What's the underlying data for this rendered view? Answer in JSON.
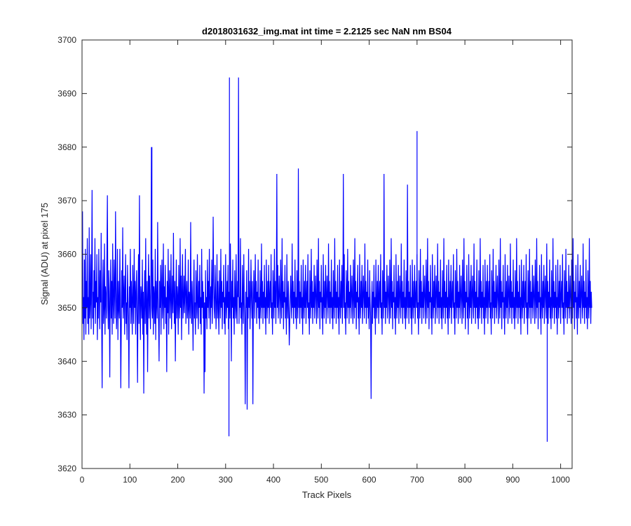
{
  "chart_data": {
    "type": "line",
    "title": "d2018031632_img.mat int time = 2.2125 sec  NaN nm BS04",
    "xlabel": "Track Pixels",
    "ylabel": "Signal (ADU) at pixel 175",
    "xlim": [
      0,
      1024
    ],
    "ylim": [
      3620,
      3700
    ],
    "xticks": [
      0,
      100,
      200,
      300,
      400,
      500,
      600,
      700,
      800,
      900,
      1000
    ],
    "yticks": [
      3620,
      3630,
      3640,
      3650,
      3660,
      3670,
      3680,
      3690,
      3700
    ],
    "xtick_labels": [
      "0",
      "100",
      "200",
      "300",
      "400",
      "500",
      "600",
      "700",
      "800",
      "900",
      "1000"
    ],
    "ytick_labels": [
      "3620",
      "3630",
      "3640",
      "3650",
      "3660",
      "3670",
      "3680",
      "3690",
      "3700"
    ],
    "grid": false,
    "series": [
      {
        "color": "#0000ff",
        "x_start": 1,
        "x_step": 1,
        "values": [
          3668,
          3647,
          3652,
          3644,
          3659,
          3648,
          3661,
          3645,
          3655,
          3650,
          3663,
          3647,
          3652,
          3645,
          3665,
          3648,
          3651,
          3660,
          3646,
          3655,
          3672,
          3648,
          3653,
          3645,
          3657,
          3650,
          3663,
          3647,
          3655,
          3651,
          3660,
          3644,
          3652,
          3648,
          3661,
          3653,
          3646,
          3657,
          3651,
          3664,
          3648,
          3635,
          3653,
          3659,
          3647,
          3650,
          3662,
          3645,
          3654,
          3652,
          3648,
          3660,
          3671,
          3650,
          3646,
          3657,
          3651,
          3637,
          3653,
          3659,
          3648,
          3655,
          3645,
          3662,
          3651,
          3647,
          3659,
          3653,
          3648,
          3668,
          3654,
          3646,
          3650,
          3661,
          3644,
          3655,
          3650,
          3648,
          3661,
          3652,
          3635,
          3646,
          3657,
          3650,
          3665,
          3648,
          3652,
          3656,
          3645,
          3653,
          3660,
          3647,
          3651,
          3644,
          3658,
          3652,
          3648,
          3635,
          3654,
          3650,
          3661,
          3647,
          3655,
          3651,
          3645,
          3658,
          3652,
          3647,
          3661,
          3650,
          3655,
          3645,
          3653,
          3657,
          3648,
          3636,
          3652,
          3660,
          3647,
          3671,
          3651,
          3644,
          3654,
          3652,
          3648,
          3659,
          3645,
          3653,
          3634,
          3651,
          3657,
          3647,
          3663,
          3650,
          3645,
          3655,
          3638,
          3652,
          3660,
          3648,
          3656,
          3651,
          3646,
          3657,
          3680,
          3650,
          3648,
          3659,
          3645,
          3654,
          3652,
          3647,
          3661,
          3644,
          3655,
          3651,
          3648,
          3666,
          3652,
          3647,
          3640,
          3655,
          3650,
          3658,
          3645,
          3653,
          3659,
          3648,
          3651,
          3662,
          3646,
          3654,
          3650,
          3658,
          3647,
          3652,
          3638,
          3655,
          3649,
          3661,
          3645,
          3653,
          3657,
          3648,
          3652,
          3660,
          3646,
          3651,
          3656,
          3649,
          3664,
          3652,
          3647,
          3655,
          3640,
          3651,
          3659,
          3648,
          3654,
          3652,
          3645,
          3658,
          3651,
          3648,
          3663,
          3650,
          3656,
          3644,
          3653,
          3660,
          3648,
          3651,
          3656,
          3649,
          3653,
          3661,
          3647,
          3652,
          3655,
          3648,
          3650,
          3659,
          3645,
          3653,
          3652,
          3648,
          3666,
          3651,
          3647,
          3655,
          3650,
          3642,
          3653,
          3659,
          3648,
          3651,
          3645,
          3657,
          3652,
          3648,
          3660,
          3651,
          3646,
          3655,
          3650,
          3658,
          3647,
          3652,
          3645,
          3661,
          3650,
          3655,
          3648,
          3653,
          3634,
          3651,
          3638,
          3657,
          3648,
          3652,
          3646,
          3659,
          3650,
          3655,
          3648,
          3661,
          3652,
          3646,
          3654,
          3650,
          3659,
          3647,
          3652,
          3667,
          3655,
          3650,
          3648,
          3658,
          3653,
          3646,
          3651,
          3660,
          3648,
          3655,
          3650,
          3645,
          3657,
          3652,
          3648,
          3661,
          3650,
          3655,
          3646,
          3653,
          3651,
          3658,
          3647,
          3652,
          3645,
          3660,
          3651,
          3648,
          3655,
          3650,
          3658,
          3646,
          3653,
          3651,
          3648,
          3662,
          3652,
          3640,
          3655,
          3650,
          3659,
          3648,
          3652,
          3645,
          3657,
          3651,
          3648,
          3660,
          3650,
          3647,
          3655,
          3652,
          3693,
          3647,
          3652,
          3650,
          3663,
          3648,
          3651,
          3645,
          3658,
          3652,
          3647,
          3660,
          3651,
          3648,
          3632,
          3653,
          3650,
          3657,
          3631,
          3652,
          3648,
          3661,
          3650,
          3655,
          3646,
          3651,
          3659,
          3652,
          3648,
          3655,
          3632,
          3650,
          3657,
          3652,
          3648,
          3660,
          3651,
          3655,
          3647,
          3653,
          3650,
          3659,
          3648,
          3652,
          3646,
          3657,
          3651,
          3648,
          3662,
          3650,
          3655,
          3647,
          3653,
          3650,
          3658,
          3648,
          3652,
          3645,
          3659,
          3651,
          3648,
          3655,
          3650,
          3658,
          3647,
          3652,
          3655,
          3650,
          3660,
          3648,
          3651,
          3645,
          3657,
          3652,
          3648,
          3661,
          3650,
          3655,
          3647,
          3653,
          3675,
          3650,
          3658,
          3648,
          3652,
          3656,
          3651,
          3647,
          3659,
          3652,
          3648,
          3663,
          3650,
          3655,
          3646,
          3653,
          3651,
          3658,
          3648,
          3652,
          3645,
          3660,
          3651,
          3648,
          3655,
          3650,
          3643,
          3647,
          3652,
          3656,
          3651,
          3648,
          3662,
          3650,
          3655,
          3647,
          3653,
          3650,
          3659,
          3648,
          3652,
          3646,
          3657,
          3651,
          3648,
          3676,
          3650,
          3655,
          3647,
          3653,
          3650,
          3658,
          3648,
          3652,
          3645,
          3659,
          3651,
          3648,
          3655,
          3650,
          3658,
          3647,
          3652,
          3655,
          3650,
          3660,
          3648,
          3651,
          3645,
          3657,
          3652,
          3648,
          3661,
          3650,
          3655,
          3647,
          3653,
          3650,
          3658,
          3648,
          3652,
          3656,
          3651,
          3647,
          3659,
          3652,
          3648,
          3663,
          3650,
          3655,
          3646,
          3653,
          3651,
          3658,
          3648,
          3652,
          3645,
          3660,
          3651,
          3648,
          3655,
          3650,
          3658,
          3647,
          3652,
          3656,
          3651,
          3648,
          3662,
          3650,
          3655,
          3647,
          3653,
          3650,
          3659,
          3648,
          3652,
          3646,
          3657,
          3651,
          3648,
          3663,
          3650,
          3655,
          3647,
          3653,
          3650,
          3658,
          3648,
          3652,
          3645,
          3659,
          3651,
          3648,
          3655,
          3650,
          3658,
          3647,
          3652,
          3675,
          3650,
          3660,
          3648,
          3651,
          3645,
          3657,
          3652,
          3648,
          3661,
          3650,
          3655,
          3647,
          3653,
          3650,
          3658,
          3648,
          3652,
          3656,
          3651,
          3647,
          3659,
          3652,
          3648,
          3663,
          3650,
          3655,
          3646,
          3653,
          3651,
          3658,
          3648,
          3652,
          3645,
          3660,
          3651,
          3648,
          3655,
          3650,
          3658,
          3647,
          3652,
          3656,
          3651,
          3648,
          3662,
          3650,
          3655,
          3647,
          3653,
          3650,
          3659,
          3648,
          3652,
          3646,
          3657,
          3651,
          3648,
          3633,
          3650,
          3655,
          3647,
          3653,
          3650,
          3658,
          3648,
          3652,
          3645,
          3659,
          3651,
          3648,
          3655,
          3650,
          3658,
          3647,
          3652,
          3655,
          3650,
          3660,
          3648,
          3651,
          3645,
          3657,
          3652,
          3648,
          3675,
          3650,
          3655,
          3647,
          3653,
          3650,
          3658,
          3648,
          3652,
          3656,
          3651,
          3647,
          3659,
          3652,
          3648,
          3663,
          3650,
          3655,
          3646,
          3653,
          3651,
          3658,
          3648,
          3652,
          3645,
          3660,
          3651,
          3648,
          3655,
          3650,
          3658,
          3647,
          3652,
          3656,
          3651,
          3648,
          3662,
          3650,
          3655,
          3647,
          3653,
          3650,
          3659,
          3648,
          3652,
          3646,
          3657,
          3651,
          3648,
          3673,
          3650,
          3655,
          3647,
          3653,
          3650,
          3658,
          3648,
          3652,
          3645,
          3659,
          3651,
          3648,
          3655,
          3650,
          3658,
          3647,
          3652,
          3655,
          3650,
          3660,
          3648,
          3651,
          3645,
          3657,
          3652,
          3648,
          3661,
          3650,
          3655,
          3647,
          3653,
          3650,
          3658,
          3648,
          3652,
          3656,
          3651,
          3647,
          3659,
          3652,
          3648,
          3663,
          3650,
          3655,
          3646,
          3653,
          3651,
          3658,
          3648,
          3652,
          3645,
          3660,
          3651,
          3648,
          3655,
          3650,
          3658,
          3647,
          3652,
          3656,
          3651,
          3648,
          3662,
          3650,
          3655,
          3647,
          3653,
          3650,
          3659,
          3648,
          3652,
          3646,
          3657,
          3651,
          3648,
          3663,
          3650,
          3655,
          3647,
          3653,
          3650,
          3658,
          3648,
          3652,
          3645,
          3659,
          3651,
          3648,
          3655,
          3650,
          3658,
          3647,
          3652,
          3655,
          3650,
          3660,
          3648,
          3651,
          3645,
          3657,
          3652,
          3648,
          3661,
          3650,
          3655,
          3647,
          3653,
          3650,
          3658,
          3648,
          3652,
          3656,
          3651,
          3647,
          3659,
          3652,
          3648,
          3663,
          3650,
          3655,
          3646,
          3653,
          3651,
          3658,
          3648,
          3652,
          3645,
          3660,
          3651,
          3648,
          3655,
          3650,
          3658,
          3647,
          3652,
          3656,
          3651,
          3648,
          3662,
          3650,
          3655,
          3647,
          3653,
          3650,
          3659,
          3648,
          3652,
          3646,
          3657,
          3651,
          3648,
          3663,
          3650,
          3655,
          3647,
          3653,
          3650,
          3658,
          3648,
          3652,
          3645,
          3659,
          3651,
          3648,
          3655,
          3650,
          3658,
          3647,
          3652,
          3655,
          3650,
          3660,
          3648,
          3651,
          3645,
          3657,
          3652,
          3648,
          3661,
          3650,
          3655,
          3647,
          3653,
          3650,
          3658,
          3648,
          3652,
          3656,
          3651,
          3647,
          3659,
          3652,
          3648,
          3663,
          3650,
          3655,
          3646,
          3653,
          3651,
          3658,
          3648,
          3652,
          3645,
          3660,
          3651,
          3648,
          3655,
          3650,
          3658,
          3647,
          3652,
          3656,
          3651,
          3648,
          3662,
          3650,
          3655,
          3647,
          3653,
          3650,
          3659,
          3648,
          3652,
          3646,
          3657,
          3651,
          3648,
          3663,
          3650,
          3655,
          3647,
          3653,
          3650,
          3658,
          3648,
          3652,
          3645,
          3659,
          3651,
          3648,
          3655,
          3650,
          3658,
          3647,
          3652,
          3655,
          3650,
          3660,
          3648,
          3651,
          3645,
          3657,
          3652,
          3648,
          3661,
          3650,
          3655,
          3647,
          3653,
          3650,
          3658,
          3648,
          3652,
          3656,
          3651,
          3647,
          3659,
          3652,
          3648,
          3663,
          3650,
          3655,
          3646,
          3653,
          3651,
          3658,
          3648,
          3652,
          3645,
          3660,
          3651,
          3648,
          3655,
          3650,
          3658,
          3647,
          3652,
          3656,
          3651,
          3648,
          3662,
          3650,
          3655,
          3647,
          3653,
          3650,
          3659,
          3648,
          3652,
          3646,
          3657,
          3651,
          3648,
          3663,
          3650,
          3655,
          3647,
          3653,
          3650,
          3658,
          3648,
          3652,
          3645,
          3659,
          3651,
          3648,
          3655,
          3650,
          3658,
          3647,
          3652,
          3655,
          3650,
          3660,
          3648,
          3651,
          3645,
          3657,
          3652,
          3648,
          3661,
          3650,
          3655,
          3647,
          3653,
          3650,
          3658,
          3648,
          3652,
          3656,
          3651,
          3647,
          3659,
          3652,
          3648,
          3663,
          3650,
          3655,
          3646,
          3653,
          3651,
          3658,
          3648,
          3652,
          3645,
          3660,
          3651,
          3648,
          3655,
          3650,
          3658,
          3647,
          3652,
          3656,
          3651,
          3648,
          3662,
          3650,
          3655,
          3647,
          3653,
          3650,
          3659,
          3648,
          3652,
          3646,
          3657,
          3651,
          3648,
          3663,
          3650,
          3655,
          3647,
          3653,
          3650
        ]
      }
    ],
    "highlights": [
      {
        "x": 146,
        "y": 3680
      },
      {
        "x": 308,
        "y": 3693
      },
      {
        "x": 307,
        "y": 3626
      },
      {
        "x": 700,
        "y": 3683
      },
      {
        "x": 972,
        "y": 3625
      }
    ]
  }
}
